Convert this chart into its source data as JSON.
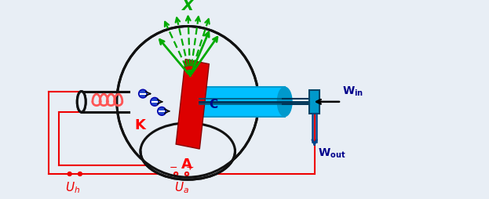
{
  "bg_color": "#e8eef5",
  "tube_outline_color": "#111111",
  "anode_color": "#dd0000",
  "collector_color": "#00bfff",
  "collector_dark": "#0099cc",
  "circuit_color": "#ee0000",
  "electron_color": "#0000dd",
  "xray_color": "#00aa00",
  "label_color": "#00008b",
  "label_K": "K",
  "label_A": "A",
  "label_C": "C",
  "label_X": "X",
  "coil_color": "#ff5555",
  "win_arrow_color": "#000000",
  "wout_arrow_color": "#004488"
}
